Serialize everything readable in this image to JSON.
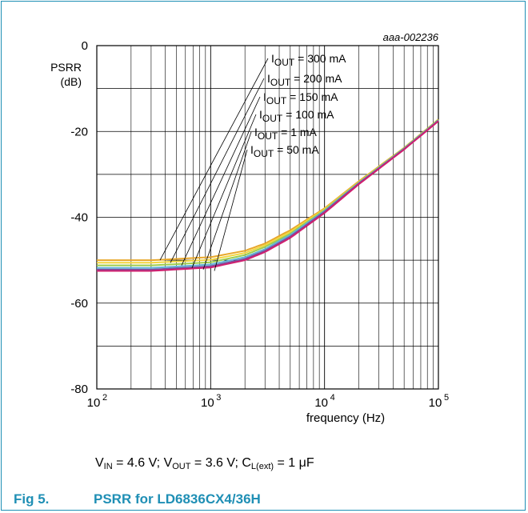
{
  "chart_data": {
    "type": "line",
    "id_label": "aaa-002236",
    "ylabel_line1": "PSRR",
    "ylabel_line2": "(dB)",
    "xlabel": "frequency (Hz)",
    "xscale": "log",
    "xlim": [
      100,
      100000
    ],
    "ylim": [
      -80,
      0
    ],
    "grid": true,
    "y_ticks": [
      "0",
      "-20",
      "-40",
      "-60",
      "-80"
    ],
    "y_tick_values": [
      0,
      -20,
      -40,
      -60,
      -80
    ],
    "x_ticks": [
      {
        "base": "10",
        "exp": "2",
        "value": 100
      },
      {
        "base": "10",
        "exp": "3",
        "value": 1000
      },
      {
        "base": "10",
        "exp": "4",
        "value": 10000
      },
      {
        "base": "10",
        "exp": "5",
        "value": 100000
      }
    ],
    "series": [
      {
        "label_prefix": "I",
        "label_sub": "OUT",
        "label_value": " =  300 mA",
        "color": "#e8a72a",
        "x": [
          100,
          300,
          1000,
          2000,
          3000,
          5000,
          10000,
          20000,
          50000,
          100000
        ],
        "y": [
          -50.0,
          -50.0,
          -49.3,
          -47.8,
          -46.1,
          -43.0,
          -37.9,
          -31.6,
          -23.8,
          -17.2
        ]
      },
      {
        "label_prefix": "I",
        "label_sub": "OUT",
        "label_value": " =  200 mA",
        "color": "#f2d640",
        "x": [
          100,
          300,
          1000,
          2000,
          3000,
          5000,
          10000,
          20000,
          50000,
          100000
        ],
        "y": [
          -50.6,
          -50.6,
          -49.9,
          -48.3,
          -46.5,
          -43.4,
          -38.1,
          -31.8,
          -23.9,
          -17.3
        ]
      },
      {
        "label_prefix": "I",
        "label_sub": "OUT",
        "label_value": " =  150 mA",
        "color": "#9dcd4d",
        "x": [
          100,
          300,
          1000,
          2000,
          3000,
          5000,
          10000,
          20000,
          50000,
          100000
        ],
        "y": [
          -51.2,
          -51.2,
          -50.5,
          -48.8,
          -46.9,
          -43.8,
          -38.3,
          -31.9,
          -23.9,
          -17.3
        ]
      },
      {
        "label_prefix": "I",
        "label_sub": "OUT",
        "label_value": " =  100 mA",
        "color": "#5fb3d6",
        "x": [
          100,
          300,
          1000,
          2000,
          3000,
          5000,
          10000,
          20000,
          50000,
          100000
        ],
        "y": [
          -51.8,
          -51.8,
          -51.0,
          -49.3,
          -47.4,
          -44.1,
          -38.5,
          -32.0,
          -24.0,
          -17.4
        ]
      },
      {
        "label_prefix": "I",
        "label_sub": "OUT",
        "label_value": " =  1 mA",
        "color": "#7a4fa0",
        "x": [
          100,
          300,
          1000,
          2000,
          3000,
          5000,
          10000,
          20000,
          50000,
          100000
        ],
        "y": [
          -52.2,
          -52.2,
          -51.4,
          -49.7,
          -47.8,
          -44.5,
          -38.7,
          -32.1,
          -24.1,
          -17.5
        ]
      },
      {
        "label_prefix": "I",
        "label_sub": "OUT",
        "label_value": " =  50 mA",
        "color": "#d01f6e",
        "x": [
          100,
          300,
          1000,
          2000,
          3000,
          5000,
          10000,
          20000,
          50000,
          100000
        ],
        "y": [
          -52.5,
          -52.5,
          -51.7,
          -50.0,
          -48.1,
          -44.8,
          -39.0,
          -32.3,
          -24.2,
          -17.6
        ]
      }
    ]
  },
  "conditions": {
    "vin_main": "V",
    "vin_sub": "IN",
    "vin_rest": " = 4.6 V; ",
    "vout_main": "V",
    "vout_sub": "OUT",
    "vout_rest": " = 3.6 V; ",
    "cl_main": "C",
    "cl_sub": "L(ext)",
    "cl_rest": " = 1 μF"
  },
  "caption": {
    "number": "Fig 5.",
    "title": "PSRR for LD6836CX4/36H"
  },
  "colors": {
    "accent": "#1f8fb5"
  }
}
